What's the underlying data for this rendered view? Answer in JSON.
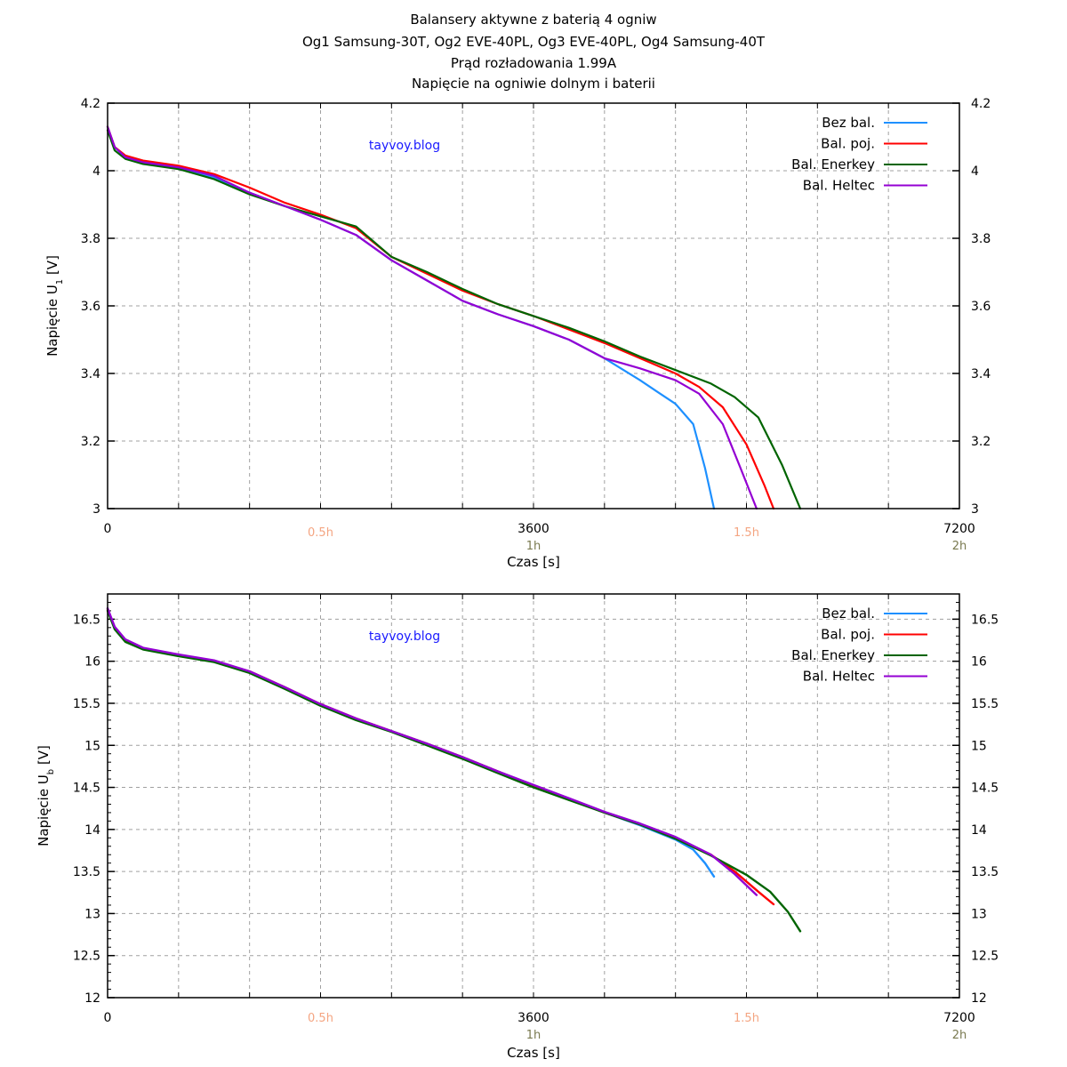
{
  "title_lines": [
    "Balansery aktywne z baterią 4 ogniw",
    "Og1 Samsung-30T,  Og2 EVE-40PL, Og3 EVE-40PL, Og4 Samsung-40T",
    "Prąd rozładowania 1.99A",
    "Napięcie na ogniwie dolnym i baterii"
  ],
  "watermark": "tayvoy.blog",
  "colors": {
    "bez_bal": "#1e90ff",
    "bal_poj": "#ff0000",
    "bal_enerkey": "#006400",
    "bal_heltec": "#9400d3",
    "hour_half": "#f4a582",
    "hour_full": "#7a7a50",
    "watermark": "#1a1aff",
    "grid": "#a0a0a0"
  },
  "chart_data": [
    {
      "type": "line",
      "title": "Napięcie na ogniwie dolnym",
      "xlabel": "Czas [s]",
      "ylabel": "Napięcie U",
      "ylabel_sub": "1",
      "ylabel_unit": " [V]",
      "xlim": [
        0,
        7200
      ],
      "ylim": [
        3,
        4.2
      ],
      "x_ticks": [
        {
          "value": 0,
          "label": "0"
        },
        {
          "value": 3600,
          "label": "3600"
        },
        {
          "value": 7200,
          "label": "7200"
        }
      ],
      "hour_ticks": [
        {
          "value": 1800,
          "label": "0.5h",
          "kind": "half"
        },
        {
          "value": 3600,
          "label": "1h",
          "kind": "full"
        },
        {
          "value": 5400,
          "label": "1.5h",
          "kind": "half"
        },
        {
          "value": 7200,
          "label": "2h",
          "kind": "full"
        }
      ],
      "y_ticks": [
        {
          "value": 3,
          "label": "3"
        },
        {
          "value": 3.2,
          "label": "3.2"
        },
        {
          "value": 3.4,
          "label": "3.4"
        },
        {
          "value": 3.6,
          "label": "3.6"
        },
        {
          "value": 3.8,
          "label": "3.8"
        },
        {
          "value": 4,
          "label": "4"
        },
        {
          "value": 4.2,
          "label": "4.2"
        }
      ],
      "grid": true,
      "legend_position": "top-right",
      "series": [
        {
          "name": "Bez bal.",
          "color_key": "bez_bal",
          "x": [
            0,
            60,
            150,
            300,
            600,
            900,
            1200,
            1500,
            1800,
            2100,
            2400,
            2700,
            3000,
            3300,
            3600,
            3900,
            4200,
            4500,
            4650,
            4800,
            4950,
            5050,
            5126
          ],
          "y": [
            4.13,
            4.07,
            4.04,
            4.025,
            4.01,
            3.98,
            3.935,
            3.895,
            3.855,
            3.81,
            3.735,
            3.675,
            3.615,
            3.575,
            3.54,
            3.5,
            3.445,
            3.38,
            3.345,
            3.31,
            3.25,
            3.12,
            3.0
          ]
        },
        {
          "name": "Bal. poj.",
          "color_key": "bal_poj",
          "x": [
            0,
            60,
            150,
            300,
            600,
            900,
            1200,
            1500,
            1800,
            2100,
            2400,
            2700,
            3000,
            3300,
            3600,
            3900,
            4200,
            4500,
            4800,
            5000,
            5200,
            5400,
            5550,
            5629
          ],
          "y": [
            4.13,
            4.07,
            4.045,
            4.03,
            4.015,
            3.99,
            3.95,
            3.905,
            3.87,
            3.83,
            3.745,
            3.695,
            3.645,
            3.605,
            3.57,
            3.53,
            3.49,
            3.445,
            3.4,
            3.36,
            3.3,
            3.19,
            3.07,
            3.0
          ]
        },
        {
          "name": "Bal. Enerkey",
          "color_key": "bal_enerkey",
          "x": [
            0,
            60,
            150,
            300,
            600,
            900,
            1200,
            1500,
            1800,
            2100,
            2400,
            2700,
            3000,
            3300,
            3600,
            3900,
            4200,
            4500,
            4800,
            5100,
            5300,
            5500,
            5700,
            5855
          ],
          "y": [
            4.12,
            4.06,
            4.035,
            4.02,
            4.005,
            3.975,
            3.93,
            3.895,
            3.865,
            3.835,
            3.745,
            3.7,
            3.65,
            3.605,
            3.57,
            3.535,
            3.495,
            3.45,
            3.41,
            3.37,
            3.33,
            3.27,
            3.13,
            3.0
          ]
        },
        {
          "name": "Bal. Heltec",
          "color_key": "bal_heltec",
          "x": [
            0,
            60,
            150,
            300,
            600,
            900,
            1200,
            1500,
            1800,
            2100,
            2400,
            2700,
            3000,
            3300,
            3600,
            3900,
            4200,
            4350,
            4500,
            4800,
            5000,
            5200,
            5350,
            5486
          ],
          "y": [
            4.13,
            4.07,
            4.04,
            4.025,
            4.01,
            3.985,
            3.935,
            3.895,
            3.855,
            3.81,
            3.735,
            3.675,
            3.615,
            3.575,
            3.54,
            3.5,
            3.445,
            3.43,
            3.415,
            3.38,
            3.34,
            3.25,
            3.12,
            3.0
          ]
        }
      ]
    },
    {
      "type": "line",
      "title": "Napięcie baterii",
      "xlabel": "Czas [s]",
      "ylabel": "Napięcie U",
      "ylabel_sub": "b",
      "ylabel_unit": " [V]",
      "xlim": [
        0,
        7200
      ],
      "ylim": [
        12,
        16.8
      ],
      "x_ticks": [
        {
          "value": 0,
          "label": "0"
        },
        {
          "value": 3600,
          "label": "3600"
        },
        {
          "value": 7200,
          "label": "7200"
        }
      ],
      "hour_ticks": [
        {
          "value": 1800,
          "label": "0.5h",
          "kind": "half"
        },
        {
          "value": 3600,
          "label": "1h",
          "kind": "full"
        },
        {
          "value": 5400,
          "label": "1.5h",
          "kind": "half"
        },
        {
          "value": 7200,
          "label": "2h",
          "kind": "full"
        }
      ],
      "y_ticks": [
        {
          "value": 12,
          "label": "12"
        },
        {
          "value": 12.5,
          "label": "12.5"
        },
        {
          "value": 13,
          "label": "13"
        },
        {
          "value": 13.5,
          "label": "13.5"
        },
        {
          "value": 14,
          "label": "14"
        },
        {
          "value": 14.5,
          "label": "14.5"
        },
        {
          "value": 15,
          "label": "15"
        },
        {
          "value": 15.5,
          "label": "15.5"
        },
        {
          "value": 16,
          "label": "16"
        },
        {
          "value": 16.5,
          "label": "16.5"
        }
      ],
      "grid": true,
      "legend_position": "top-right",
      "series": [
        {
          "name": "Bez bal.",
          "color_key": "bez_bal",
          "x": [
            0,
            60,
            150,
            300,
            600,
            900,
            1200,
            1500,
            1800,
            2100,
            2400,
            2700,
            3000,
            3300,
            3600,
            3900,
            4200,
            4500,
            4800,
            4950,
            5050,
            5126
          ],
          "y": [
            16.62,
            16.4,
            16.25,
            16.15,
            16.07,
            16.0,
            15.87,
            15.68,
            15.48,
            15.31,
            15.17,
            15.02,
            14.86,
            14.69,
            14.52,
            14.36,
            14.2,
            14.05,
            13.88,
            13.76,
            13.6,
            13.44
          ]
        },
        {
          "name": "Bal. poj.",
          "color_key": "bal_poj",
          "x": [
            0,
            60,
            150,
            300,
            600,
            900,
            1200,
            1500,
            1800,
            2100,
            2400,
            2700,
            3000,
            3300,
            3600,
            3900,
            4200,
            4500,
            4800,
            5100,
            5300,
            5500,
            5629
          ],
          "y": [
            16.62,
            16.4,
            16.25,
            16.15,
            16.07,
            16.0,
            15.88,
            15.69,
            15.49,
            15.32,
            15.17,
            15.02,
            14.86,
            14.69,
            14.52,
            14.36,
            14.2,
            14.06,
            13.9,
            13.7,
            13.5,
            13.26,
            13.11
          ]
        },
        {
          "name": "Bal. Enerkey",
          "color_key": "bal_enerkey",
          "x": [
            0,
            60,
            150,
            300,
            600,
            900,
            1200,
            1500,
            1800,
            2100,
            2400,
            2700,
            3000,
            3300,
            3600,
            3900,
            4200,
            4500,
            4800,
            5100,
            5400,
            5600,
            5750,
            5855
          ],
          "y": [
            16.6,
            16.38,
            16.23,
            16.14,
            16.06,
            15.99,
            15.86,
            15.67,
            15.47,
            15.3,
            15.16,
            15.0,
            14.84,
            14.67,
            14.5,
            14.35,
            14.2,
            14.06,
            13.89,
            13.69,
            13.46,
            13.26,
            13.02,
            12.79
          ]
        },
        {
          "name": "Bal. Heltec",
          "color_key": "bal_heltec",
          "x": [
            0,
            60,
            150,
            300,
            600,
            900,
            1200,
            1500,
            1800,
            2100,
            2400,
            2700,
            3000,
            3300,
            3600,
            3900,
            4200,
            4500,
            4800,
            5100,
            5300,
            5486
          ],
          "y": [
            16.63,
            16.41,
            16.26,
            16.16,
            16.08,
            16.01,
            15.88,
            15.69,
            15.49,
            15.32,
            15.17,
            15.02,
            14.86,
            14.69,
            14.53,
            14.37,
            14.21,
            14.07,
            13.91,
            13.7,
            13.47,
            13.22
          ]
        }
      ]
    }
  ]
}
